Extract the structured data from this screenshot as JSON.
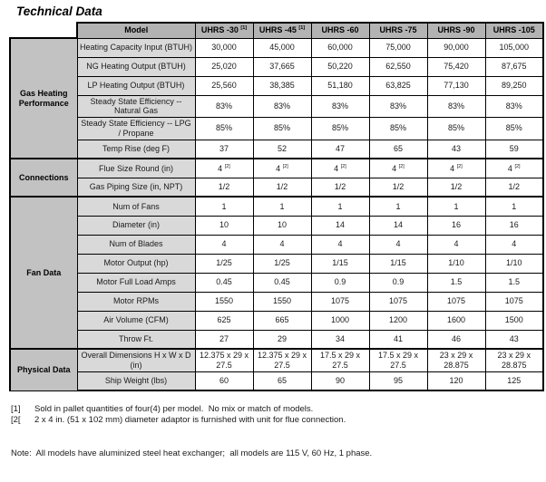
{
  "title": "Technical Data",
  "colors": {
    "header_bg": "#b3b3b3",
    "group_bg": "#c2c2c2",
    "label_bg": "#d9d9d9",
    "cell_bg": "#ffffff",
    "border": "#000000"
  },
  "table": {
    "corner_label": "Model",
    "columns": [
      {
        "label": "UHRS -30",
        "sup": "[1]"
      },
      {
        "label": "UHRS -45",
        "sup": "[1]"
      },
      {
        "label": "UHRS -60",
        "sup": ""
      },
      {
        "label": "UHRS -75",
        "sup": ""
      },
      {
        "label": "UHRS -90",
        "sup": ""
      },
      {
        "label": "UHRS -105",
        "sup": ""
      }
    ],
    "groups": [
      {
        "name": "Gas Heating Performance",
        "rows": [
          {
            "label": "Heating Capacity Input (BTUH)",
            "values": [
              "30,000",
              "45,000",
              "60,000",
              "75,000",
              "90,000",
              "105,000"
            ],
            "value_sup": ""
          },
          {
            "label": "NG Heating Output (BTUH)",
            "values": [
              "25,020",
              "37,665",
              "50,220",
              "62,550",
              "75,420",
              "87,675"
            ],
            "value_sup": ""
          },
          {
            "label": "LP Heating Output (BTUH)",
            "values": [
              "25,560",
              "38,385",
              "51,180",
              "63,825",
              "77,130",
              "89,250"
            ],
            "value_sup": ""
          },
          {
            "label": "Steady State Efficiency -- Natural Gas",
            "values": [
              "83%",
              "83%",
              "83%",
              "83%",
              "83%",
              "83%"
            ],
            "value_sup": ""
          },
          {
            "label": "Steady State Efficiency -- LPG / Propane",
            "values": [
              "85%",
              "85%",
              "85%",
              "85%",
              "85%",
              "85%"
            ],
            "value_sup": ""
          },
          {
            "label": "Temp Rise (deg F)",
            "values": [
              "37",
              "52",
              "47",
              "65",
              "43",
              "59"
            ],
            "value_sup": ""
          }
        ]
      },
      {
        "name": "Connections",
        "rows": [
          {
            "label": "Flue Size Round (in)",
            "values": [
              "4",
              "4",
              "4",
              "4",
              "4",
              "4"
            ],
            "value_sup": "[2]"
          },
          {
            "label": "Gas Piping Size (in, NPT)",
            "values": [
              "1/2",
              "1/2",
              "1/2",
              "1/2",
              "1/2",
              "1/2"
            ],
            "value_sup": ""
          }
        ]
      },
      {
        "name": "Fan Data",
        "rows": [
          {
            "label": "Num of Fans",
            "values": [
              "1",
              "1",
              "1",
              "1",
              "1",
              "1"
            ],
            "value_sup": ""
          },
          {
            "label": "Diameter (in)",
            "values": [
              "10",
              "10",
              "14",
              "14",
              "16",
              "16"
            ],
            "value_sup": ""
          },
          {
            "label": "Num of Blades",
            "values": [
              "4",
              "4",
              "4",
              "4",
              "4",
              "4"
            ],
            "value_sup": ""
          },
          {
            "label": "Motor Output (hp)",
            "values": [
              "1/25",
              "1/25",
              "1/15",
              "1/15",
              "1/10",
              "1/10"
            ],
            "value_sup": ""
          },
          {
            "label": "Motor Full Load Amps",
            "values": [
              "0.45",
              "0.45",
              "0.9",
              "0.9",
              "1.5",
              "1.5"
            ],
            "value_sup": ""
          },
          {
            "label": "Motor RPMs",
            "values": [
              "1550",
              "1550",
              "1075",
              "1075",
              "1075",
              "1075"
            ],
            "value_sup": ""
          },
          {
            "label": "Air Volume (CFM)",
            "values": [
              "625",
              "665",
              "1000",
              "1200",
              "1600",
              "1500"
            ],
            "value_sup": ""
          },
          {
            "label": "Throw Ft.",
            "values": [
              "27",
              "29",
              "34",
              "41",
              "46",
              "43"
            ],
            "value_sup": ""
          }
        ]
      },
      {
        "name": "Physical Data",
        "rows": [
          {
            "label": "Overall Dimensions H x W x D (in)",
            "values": [
              "12.375 x 29 x 27.5",
              "12.375 x 29 x 27.5",
              "17.5 x 29 x 27.5",
              "17.5 x 29 x 27.5",
              "23 x 29 x 28.875",
              "23 x 29 x 28.875"
            ],
            "value_sup": ""
          },
          {
            "label": "Ship Weight (lbs)",
            "values": [
              "60",
              "65",
              "90",
              "95",
              "120",
              "125"
            ],
            "value_sup": ""
          }
        ]
      }
    ]
  },
  "footnotes": [
    {
      "marker": "[1]",
      "text": "Sold in pallet quantities of four(4) per model.  No mix or match of models."
    },
    {
      "marker": "[2[",
      "text": "2 x 4 in. (51 x 102 mm) diameter adaptor is furnished with unit for flue connection."
    }
  ],
  "note": "Note:  All models have aluminized steel heat exchanger;  all models are 115 V, 60 Hz, 1 phase."
}
